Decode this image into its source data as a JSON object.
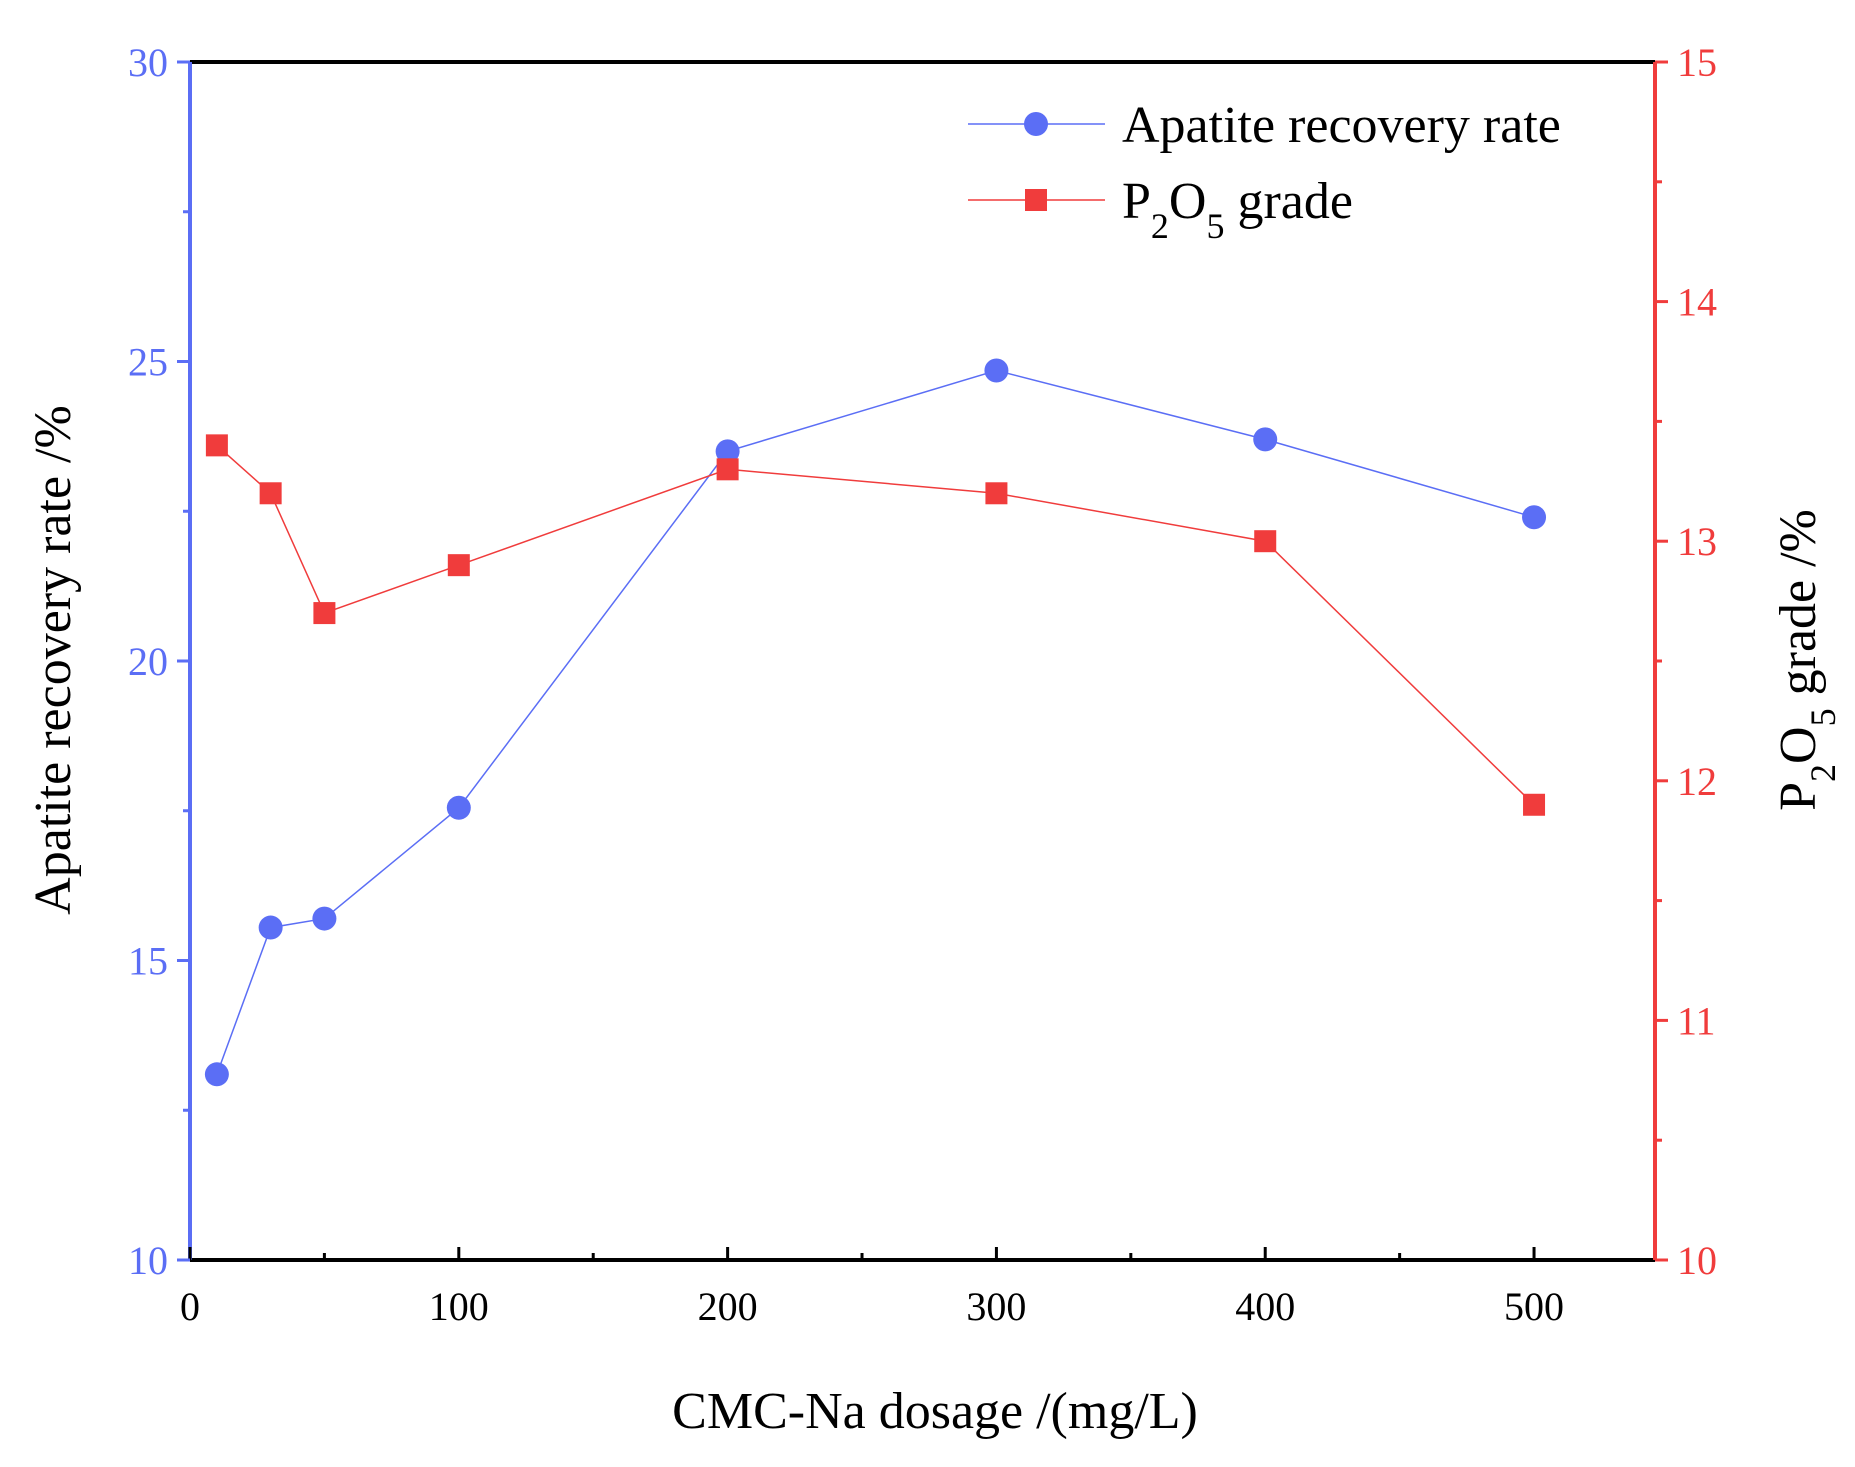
{
  "chart_data": {
    "type": "line",
    "x": [
      10,
      30,
      50,
      100,
      200,
      300,
      400,
      500
    ],
    "xlabel": "CMC-Na dosage /(mg/L)",
    "xlim": [
      0,
      545
    ],
    "xticks": [
      0,
      100,
      200,
      300,
      400,
      500
    ],
    "xticks_minor": [
      50,
      150,
      250,
      350,
      450
    ],
    "y_left": {
      "label": "Apatite recovery rate /%",
      "lim": [
        10,
        30
      ],
      "ticks": [
        10,
        15,
        20,
        25,
        30
      ],
      "minor_ticks": [
        12.5,
        17.5,
        22.5,
        27.5
      ],
      "color": "#5b6ef5"
    },
    "y_right": {
      "label_parts": [
        "P",
        "2",
        "O",
        "5",
        " grade /%"
      ],
      "lim": [
        10,
        15
      ],
      "ticks": [
        10,
        11,
        12,
        13,
        14,
        15
      ],
      "minor_ticks": [
        10.5,
        11.5,
        12.5,
        13.5,
        14.5
      ],
      "color": "#f03c3c"
    },
    "series": [
      {
        "name": "Apatite recovery rate",
        "axis": "left",
        "marker": "circle",
        "color": "#5b6ef5",
        "values": [
          13.1,
          15.55,
          15.7,
          17.55,
          23.5,
          24.85,
          23.7,
          22.4
        ]
      },
      {
        "name": "P2O5 grade",
        "legend_parts": [
          "P",
          "2",
          "O",
          "5",
          " grade"
        ],
        "axis": "right",
        "marker": "square",
        "color": "#f03c3c",
        "values": [
          13.4,
          13.2,
          12.7,
          12.9,
          13.3,
          13.2,
          13.0,
          11.9
        ]
      }
    ],
    "legend": "top-right",
    "grid": false
  }
}
